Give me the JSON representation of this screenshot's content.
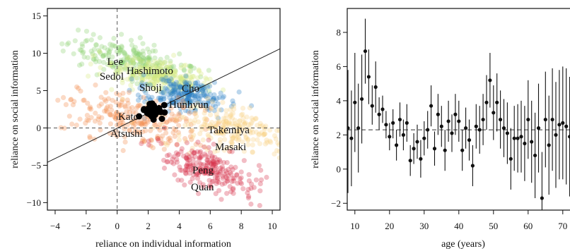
{
  "colors": {
    "frame": "#111111",
    "green": "#8ccf6f",
    "yellow_green": "#d6e880",
    "blue": "#2c7fc3",
    "orange": "#f38b4f",
    "light_orange": "#f9d083",
    "red": "#d7334b",
    "black": "#000000"
  },
  "chart_data": [
    {
      "type": "scatter",
      "xlabel": "reliance on individual information",
      "ylabel": "reliance on social information",
      "xlim": [
        -4.5,
        10.5
      ],
      "ylim": [
        -11,
        16
      ],
      "xticks": [
        -4,
        -2,
        0,
        2,
        4,
        6,
        8,
        10
      ],
      "yticks": [
        -10,
        -5,
        0,
        5,
        10,
        15
      ],
      "reference_lines": {
        "x": 0,
        "y": 0,
        "style": "dashed"
      },
      "regression_line": {
        "points": [
          [
            -4.5,
            -4.6
          ],
          [
            10.5,
            10.6
          ]
        ]
      },
      "clusters": [
        {
          "labels": [
            "Lee",
            "Sedol"
          ],
          "color": "green",
          "center": [
            1.0,
            9.0
          ],
          "spread": [
            2.3,
            1.1
          ],
          "slope": -0.75
        },
        {
          "labels": [
            "Hashimoto",
            "Shoji"
          ],
          "color": "yellow_green",
          "center": [
            2.8,
            6.8
          ],
          "spread": [
            1.8,
            0.9
          ],
          "slope": -0.6
        },
        {
          "labels": [
            "Cho",
            "Hunhyun"
          ],
          "color": "blue",
          "center": [
            4.4,
            4.4
          ],
          "spread": [
            1.4,
            1.0
          ],
          "slope": -0.55
        },
        {
          "labels": [
            "Kato",
            "Atsushi"
          ],
          "color": "orange",
          "center": [
            1.0,
            1.3
          ],
          "spread": [
            2.4,
            1.6
          ],
          "slope": -0.45
        },
        {
          "labels": [
            "Takemiya",
            "Masaki"
          ],
          "color": "light_orange",
          "center": [
            7.5,
            -0.3
          ],
          "spread": [
            2.2,
            1.3
          ],
          "slope": -0.55
        },
        {
          "labels": [
            "Peng",
            "Quan"
          ],
          "color": "red",
          "center": [
            5.8,
            -5.5
          ],
          "spread": [
            2.0,
            1.0
          ],
          "slope": -1.25
        }
      ],
      "population_mean": {
        "x": 2.3,
        "y": 2.4,
        "color": "black"
      }
    },
    {
      "type": "errorbar",
      "xlabel": "age (years)",
      "ylabel": "reliance on social information",
      "xlim": [
        8,
        72
      ],
      "ylim": [
        -2.4,
        9.4
      ],
      "xticks": [
        10,
        20,
        30,
        40,
        50,
        60,
        70
      ],
      "yticks": [
        -2,
        0,
        2,
        4,
        6,
        8
      ],
      "reference_line": {
        "y": 2.3,
        "style": "dashed"
      },
      "points": [
        {
          "x": 8.0,
          "y": 2.4,
          "lo": -1.4,
          "hi": 5.8
        },
        {
          "x": 9.0,
          "y": 1.8,
          "lo": -1.0,
          "hi": 4.6
        },
        {
          "x": 10.0,
          "y": 3.9,
          "lo": 1.0,
          "hi": 6.8
        },
        {
          "x": 11.0,
          "y": 2.4,
          "lo": -0.2,
          "hi": 5.0
        },
        {
          "x": 12.0,
          "y": 4.1,
          "lo": 1.5,
          "hi": 6.7
        },
        {
          "x": 13.0,
          "y": 6.9,
          "lo": 5.0,
          "hi": 8.8
        },
        {
          "x": 14.0,
          "y": 5.4,
          "lo": 3.8,
          "hi": 7.0
        },
        {
          "x": 15.0,
          "y": 3.7,
          "lo": 2.6,
          "hi": 4.9
        },
        {
          "x": 16.0,
          "y": 4.8,
          "lo": 3.3,
          "hi": 6.3
        },
        {
          "x": 17.0,
          "y": 3.2,
          "lo": 2.3,
          "hi": 4.2
        },
        {
          "x": 18.0,
          "y": 3.5,
          "lo": 2.7,
          "hi": 4.3
        },
        {
          "x": 19.0,
          "y": 2.6,
          "lo": 1.8,
          "hi": 3.4
        },
        {
          "x": 20.0,
          "y": 1.9,
          "lo": 1.1,
          "hi": 2.7
        },
        {
          "x": 21.0,
          "y": 2.7,
          "lo": 1.8,
          "hi": 3.5
        },
        {
          "x": 22.0,
          "y": 1.4,
          "lo": 0.5,
          "hi": 2.3
        },
        {
          "x": 23.0,
          "y": 2.9,
          "lo": 1.9,
          "hi": 3.9
        },
        {
          "x": 24.0,
          "y": 2.0,
          "lo": 1.1,
          "hi": 2.9
        },
        {
          "x": 25.0,
          "y": 2.7,
          "lo": 1.6,
          "hi": 3.8
        },
        {
          "x": 26.0,
          "y": 0.5,
          "lo": -0.4,
          "hi": 1.4
        },
        {
          "x": 27.0,
          "y": 1.2,
          "lo": 0.3,
          "hi": 2.1
        },
        {
          "x": 28.0,
          "y": 1.6,
          "lo": 0.6,
          "hi": 2.6
        },
        {
          "x": 29.0,
          "y": 0.6,
          "lo": -0.5,
          "hi": 1.7
        },
        {
          "x": 30.0,
          "y": 1.8,
          "lo": 0.8,
          "hi": 2.8
        },
        {
          "x": 31.0,
          "y": 2.3,
          "lo": 1.2,
          "hi": 3.4
        },
        {
          "x": 32.0,
          "y": 3.7,
          "lo": 2.5,
          "hi": 4.9
        },
        {
          "x": 33.0,
          "y": 1.2,
          "lo": 0.2,
          "hi": 2.2
        },
        {
          "x": 34.0,
          "y": 3.2,
          "lo": 2.0,
          "hi": 4.4
        },
        {
          "x": 35.0,
          "y": 2.5,
          "lo": 1.3,
          "hi": 3.7
        },
        {
          "x": 36.0,
          "y": 1.1,
          "lo": -0.1,
          "hi": 2.3
        },
        {
          "x": 37.0,
          "y": 2.8,
          "lo": 1.6,
          "hi": 4.0
        },
        {
          "x": 38.0,
          "y": 2.1,
          "lo": 1.0,
          "hi": 3.2
        },
        {
          "x": 39.0,
          "y": 3.2,
          "lo": 2.0,
          "hi": 4.4
        },
        {
          "x": 40.0,
          "y": 2.8,
          "lo": 1.6,
          "hi": 4.0
        },
        {
          "x": 41.0,
          "y": 1.1,
          "lo": -0.1,
          "hi": 2.3
        },
        {
          "x": 42.0,
          "y": 2.4,
          "lo": 1.2,
          "hi": 3.6
        },
        {
          "x": 43.0,
          "y": 1.7,
          "lo": 0.5,
          "hi": 2.9
        },
        {
          "x": 44.0,
          "y": 0.2,
          "lo": -1.0,
          "hi": 1.4
        },
        {
          "x": 45.0,
          "y": 2.5,
          "lo": 1.2,
          "hi": 3.8
        },
        {
          "x": 46.0,
          "y": 2.3,
          "lo": 0.9,
          "hi": 3.7
        },
        {
          "x": 47.0,
          "y": 2.9,
          "lo": 1.4,
          "hi": 4.4
        },
        {
          "x": 48.0,
          "y": 3.9,
          "lo": 2.3,
          "hi": 5.5
        },
        {
          "x": 49.0,
          "y": 5.2,
          "lo": 3.6,
          "hi": 6.8
        },
        {
          "x": 50.0,
          "y": 3.3,
          "lo": 1.7,
          "hi": 4.9
        },
        {
          "x": 51.0,
          "y": 3.9,
          "lo": 2.2,
          "hi": 5.6
        },
        {
          "x": 52.0,
          "y": 2.9,
          "lo": 1.2,
          "hi": 4.6
        },
        {
          "x": 53.0,
          "y": 2.4,
          "lo": 0.7,
          "hi": 4.1
        },
        {
          "x": 54.0,
          "y": 2.1,
          "lo": 0.3,
          "hi": 3.9
        },
        {
          "x": 55.0,
          "y": 0.6,
          "lo": -1.2,
          "hi": 2.4
        },
        {
          "x": 56.0,
          "y": 1.8,
          "lo": -0.1,
          "hi": 3.7
        },
        {
          "x": 57.0,
          "y": 1.8,
          "lo": -0.2,
          "hi": 3.8
        },
        {
          "x": 58.0,
          "y": 1.9,
          "lo": -0.2,
          "hi": 4.0
        },
        {
          "x": 59.0,
          "y": 1.5,
          "lo": -0.7,
          "hi": 3.7
        },
        {
          "x": 60.0,
          "y": 2.9,
          "lo": 0.6,
          "hi": 5.2
        },
        {
          "x": 61.0,
          "y": 1.6,
          "lo": -0.8,
          "hi": 4.0
        },
        {
          "x": 62.0,
          "y": 0.8,
          "lo": -1.7,
          "hi": 3.3
        },
        {
          "x": 63.0,
          "y": 2.4,
          "lo": -0.2,
          "hi": 5.0
        },
        {
          "x": 64.0,
          "y": -1.7,
          "lo": -2.4,
          "hi": 1.0
        },
        {
          "x": 65.0,
          "y": 2.9,
          "lo": 0.1,
          "hi": 5.7
        },
        {
          "x": 66.0,
          "y": 1.4,
          "lo": -1.5,
          "hi": 4.3
        },
        {
          "x": 67.0,
          "y": 2.9,
          "lo": -0.1,
          "hi": 5.9
        },
        {
          "x": 68.0,
          "y": 2.0,
          "lo": -1.1,
          "hi": 5.1
        },
        {
          "x": 69.0,
          "y": 2.6,
          "lo": -0.6,
          "hi": 5.8
        },
        {
          "x": 70.0,
          "y": 2.7,
          "lo": -0.6,
          "hi": 6.0
        },
        {
          "x": 71.0,
          "y": 2.5,
          "lo": -0.9,
          "hi": 5.9
        },
        {
          "x": 72.0,
          "y": 1.9,
          "lo": -1.6,
          "hi": 5.4
        }
      ]
    }
  ]
}
